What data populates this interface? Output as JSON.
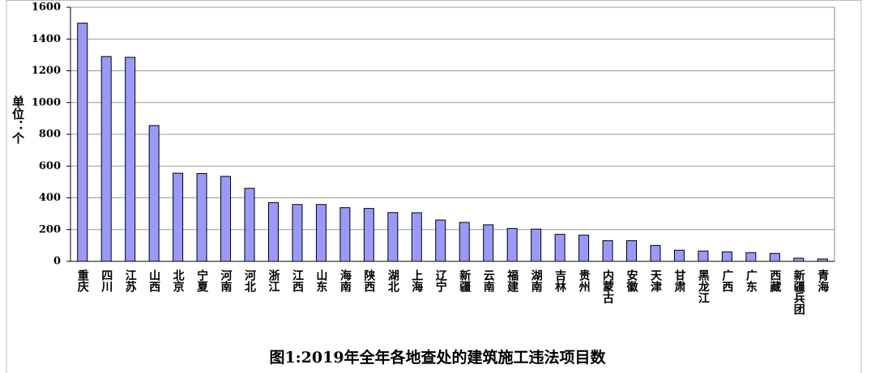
{
  "chart_data": {
    "type": "bar",
    "title": "图1:2019年全年各地查处的建筑施工违法项目数",
    "y_label": "单位：个",
    "categories": [
      "重庆",
      "四川",
      "江苏",
      "山西",
      "北京",
      "宁夏",
      "河南",
      "河北",
      "浙江",
      "江西",
      "山东",
      "海南",
      "陕西",
      "湖北",
      "上海",
      "辽宁",
      "新疆",
      "云南",
      "福建",
      "湖南",
      "吉林",
      "贵州",
      "内蒙古",
      "安徽",
      "天津",
      "甘肃",
      "黑龙江",
      "广西",
      "广东",
      "西藏",
      "新疆兵团",
      "青海"
    ],
    "values": [
      1500,
      1290,
      1285,
      855,
      555,
      553,
      535,
      460,
      370,
      358,
      358,
      338,
      333,
      307,
      306,
      260,
      245,
      230,
      207,
      203,
      170,
      165,
      130,
      130,
      100,
      70,
      65,
      60,
      55,
      50,
      20,
      15
    ],
    "color": "#9999ff",
    "ylim": [
      0,
      1600
    ],
    "yticks": [
      0,
      200,
      400,
      600,
      800,
      1000,
      1200,
      1400,
      1600
    ],
    "grid": true
  }
}
